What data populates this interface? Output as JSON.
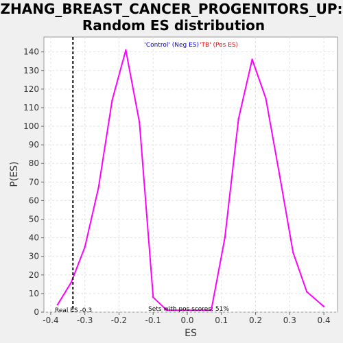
{
  "chart_data": {
    "type": "line",
    "title_line1": "ZHANG_BREAST_CANCER_PROGENITORS_UP:",
    "title_line2": "Random ES distribution",
    "xlabel": "ES",
    "ylabel": "P(ES)",
    "xlim": [
      -0.42,
      0.44
    ],
    "ylim": [
      0,
      148
    ],
    "x_ticks": [
      -0.4,
      -0.3,
      -0.2,
      -0.1,
      0.0,
      0.1,
      0.2,
      0.3,
      0.4
    ],
    "x_tick_labels": [
      "-0.4",
      "-0.3",
      "-0.2",
      "-0.1",
      "0.0",
      "0.1",
      "0.2",
      "0.3",
      "0.4"
    ],
    "y_ticks": [
      0,
      10,
      20,
      30,
      40,
      50,
      60,
      70,
      80,
      90,
      100,
      110,
      120,
      130,
      140
    ],
    "y_tick_labels": [
      "0",
      "10",
      "20",
      "30",
      "40",
      "50",
      "60",
      "70",
      "80",
      "90",
      "100",
      "110",
      "120",
      "130",
      "140"
    ],
    "grid": true,
    "series": [
      {
        "color": "#ff00ff",
        "x": [
          -0.38,
          -0.34,
          -0.3,
          -0.26,
          -0.22,
          -0.18,
          -0.14,
          -0.1,
          -0.06,
          -0.02,
          0.02,
          0.07,
          0.11,
          0.15,
          0.19,
          0.23,
          0.27,
          0.31,
          0.35,
          0.4
        ],
        "y": [
          4,
          16,
          35,
          67,
          114,
          141,
          102,
          8,
          1,
          1,
          1,
          1,
          40,
          104,
          136,
          115,
          74,
          32,
          11,
          3
        ]
      }
    ],
    "real_es": -0.335,
    "real_es_label": "Real ES -0.3",
    "pos_scores_label": "Sets with pos scores: 51%",
    "legend_neg": "'Control' (Neg ES)",
    "legend_pos": "'TB' (Pos ES)",
    "legend_neg_color": "#0000dd",
    "legend_pos_color": "#ff0000"
  }
}
